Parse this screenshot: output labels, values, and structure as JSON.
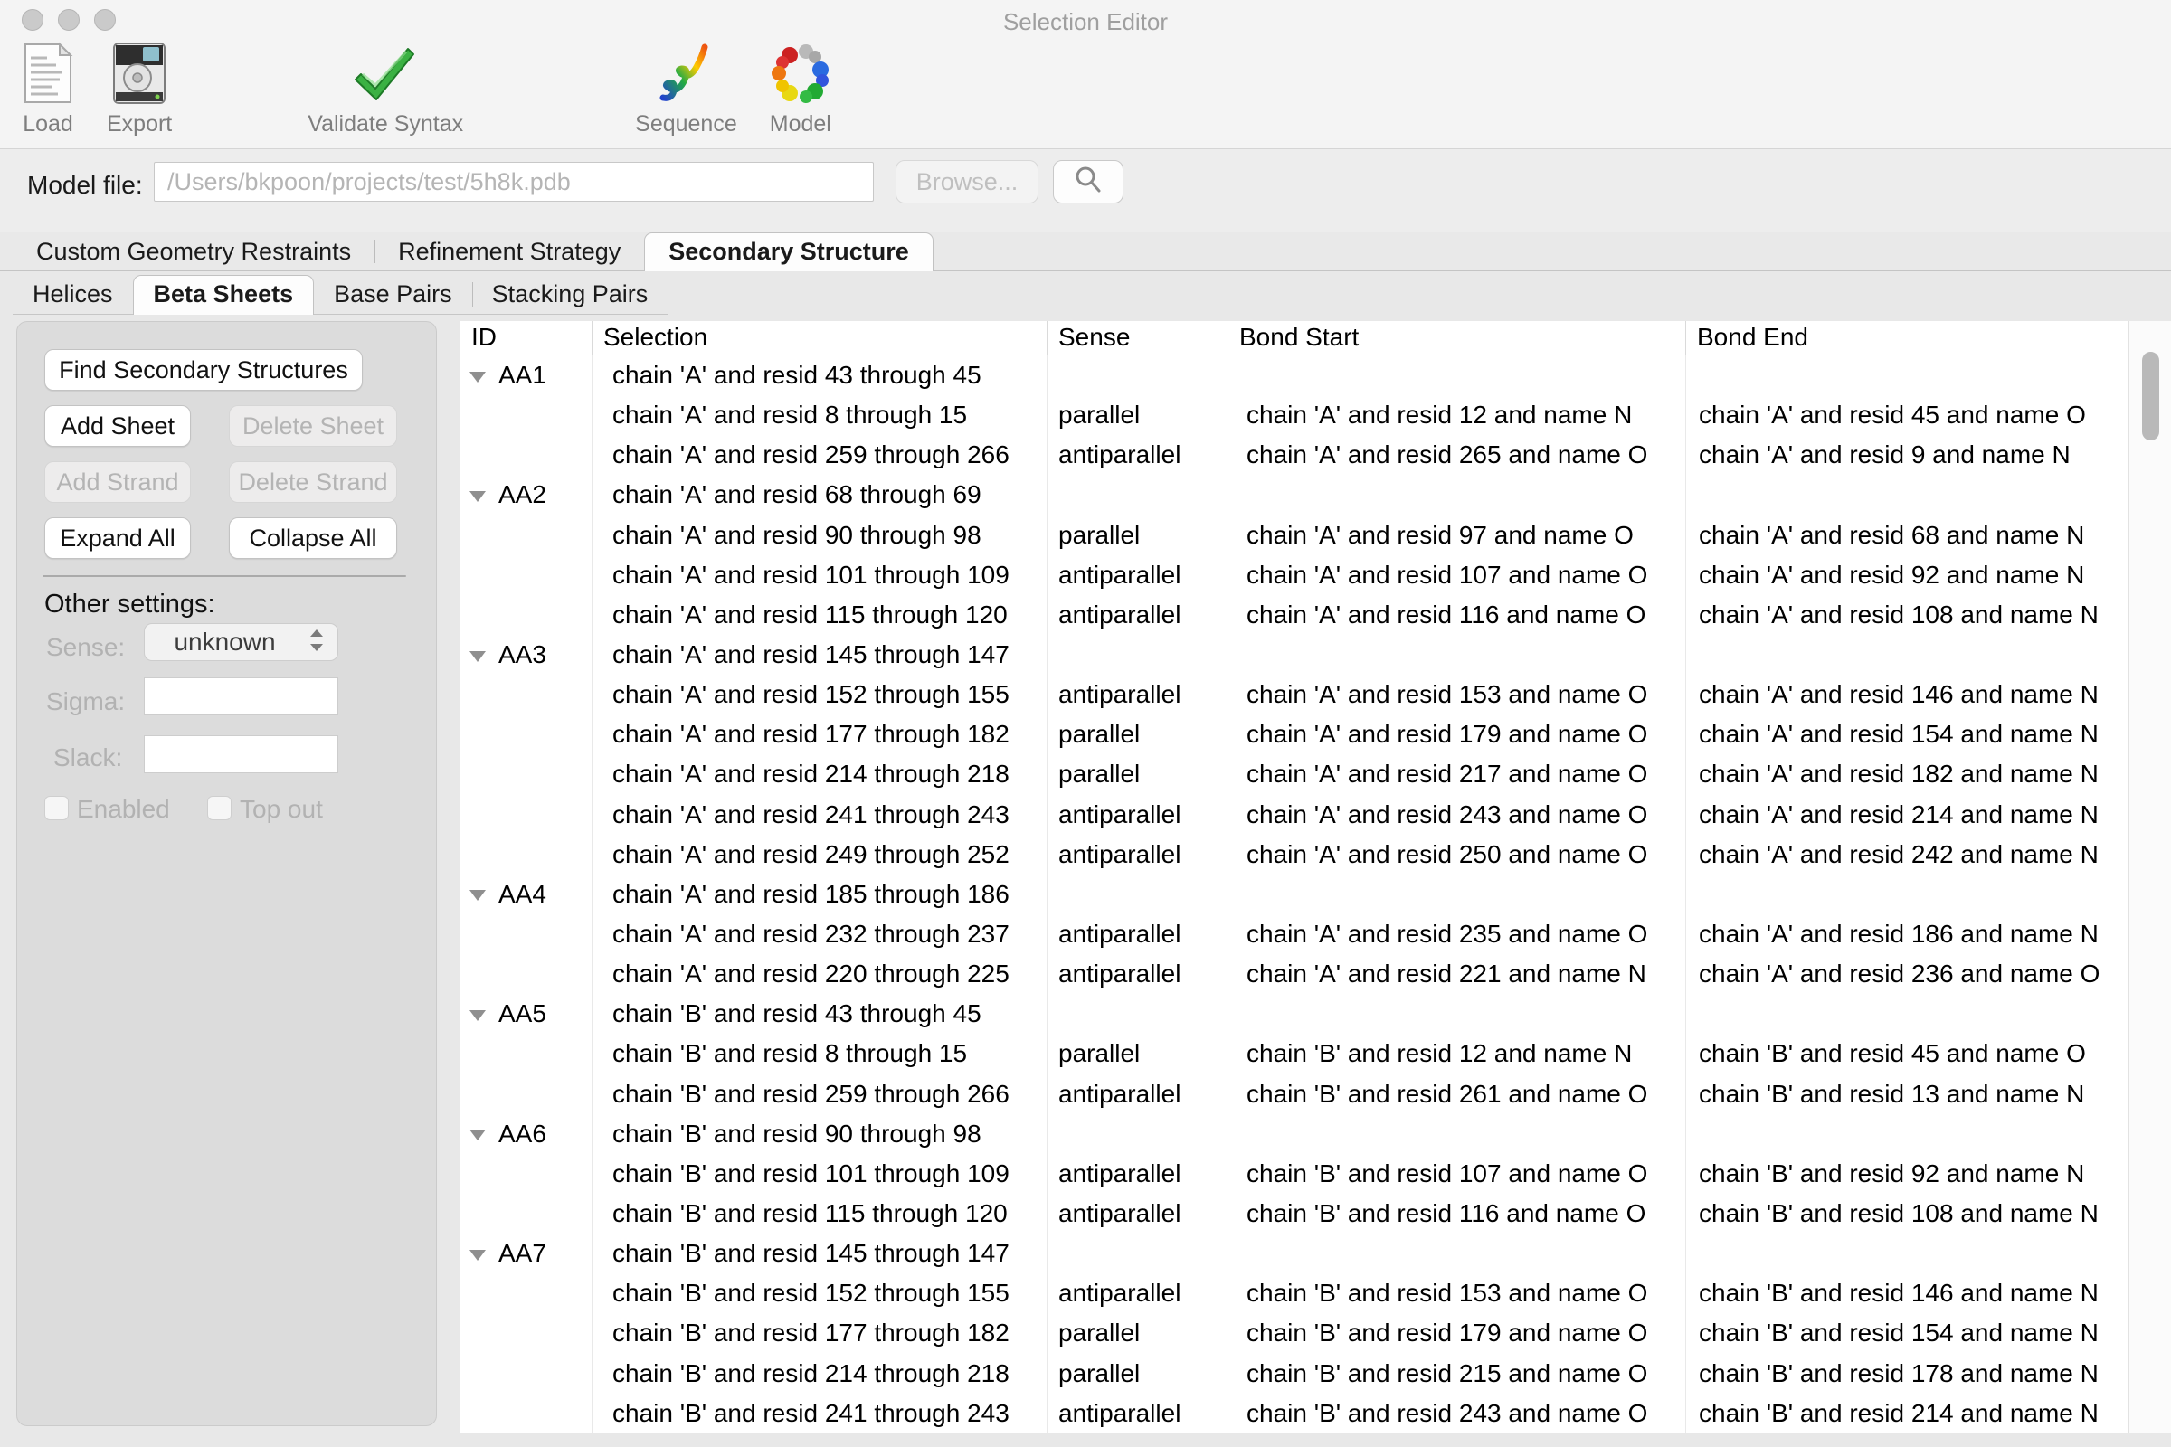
{
  "window": {
    "title": "Selection Editor"
  },
  "colors": {
    "validate_check_green": "#3bb143",
    "window_background": "#e8e8e8",
    "panel_background": "#dcdcdc",
    "table_background": "#ffffff"
  },
  "toolbar": {
    "items": [
      {
        "label": "Load",
        "icon": "load-document-icon"
      },
      {
        "label": "Export",
        "icon": "export-disk-icon"
      },
      {
        "label": "Validate Syntax",
        "icon": "validate-checkmark-icon"
      },
      {
        "label": "Sequence",
        "icon": "sequence-ribbon-icon"
      },
      {
        "label": "Model",
        "icon": "model-molecule-icon"
      }
    ]
  },
  "model_file": {
    "label": "Model file:",
    "value": "/Users/bkpoon/projects/test/5h8k.pdb",
    "browse_label": "Browse...",
    "search_icon": "magnifier-icon"
  },
  "main_tabs": [
    {
      "label": "Custom Geometry Restraints",
      "selected": false
    },
    {
      "label": "Refinement Strategy",
      "selected": false
    },
    {
      "label": "Secondary Structure",
      "selected": true
    }
  ],
  "sub_tabs": [
    {
      "label": "Helices",
      "selected": false
    },
    {
      "label": "Beta Sheets",
      "selected": true
    },
    {
      "label": "Base Pairs",
      "selected": false
    },
    {
      "label": "Stacking Pairs",
      "selected": false
    }
  ],
  "sidebar": {
    "buttons": {
      "find": {
        "label": "Find Secondary Structures",
        "enabled": true
      },
      "add_sheet": {
        "label": "Add Sheet",
        "enabled": true
      },
      "delete_sheet": {
        "label": "Delete Sheet",
        "enabled": false
      },
      "add_strand": {
        "label": "Add Strand",
        "enabled": false
      },
      "delete_strand": {
        "label": "Delete Strand",
        "enabled": false
      },
      "expand_all": {
        "label": "Expand All",
        "enabled": true
      },
      "collapse_all": {
        "label": "Collapse All",
        "enabled": true
      }
    },
    "other_settings": {
      "heading": "Other settings:",
      "sense_label": "Sense:",
      "sense_value": "unknown",
      "sigma_label": "Sigma:",
      "sigma_value": "",
      "slack_label": "Slack:",
      "slack_value": "",
      "enabled_label": "Enabled",
      "enabled_checked": false,
      "top_out_label": "Top out",
      "top_out_checked": false
    }
  },
  "table": {
    "columns": [
      "ID",
      "Selection",
      "Sense",
      "Bond Start",
      "Bond End"
    ],
    "rows": [
      {
        "id": "AA1",
        "selection": "chain 'A' and resid 43 through 45",
        "sense": "",
        "bond_start": "",
        "bond_end": ""
      },
      {
        "id": "",
        "selection": "chain 'A' and resid 8 through 15",
        "sense": "parallel",
        "bond_start": "chain 'A' and resid 12 and name N",
        "bond_end": "chain 'A' and resid 45 and name O"
      },
      {
        "id": "",
        "selection": "chain 'A' and resid 259 through 266",
        "sense": "antiparallel",
        "bond_start": "chain 'A' and resid 265 and name O",
        "bond_end": "chain 'A' and resid 9 and name N"
      },
      {
        "id": "AA2",
        "selection": "chain 'A' and resid 68 through 69",
        "sense": "",
        "bond_start": "",
        "bond_end": ""
      },
      {
        "id": "",
        "selection": "chain 'A' and resid 90 through 98",
        "sense": "parallel",
        "bond_start": "chain 'A' and resid 97 and name O",
        "bond_end": "chain 'A' and resid 68 and name N"
      },
      {
        "id": "",
        "selection": "chain 'A' and resid 101 through 109",
        "sense": "antiparallel",
        "bond_start": "chain 'A' and resid 107 and name O",
        "bond_end": "chain 'A' and resid 92 and name N"
      },
      {
        "id": "",
        "selection": "chain 'A' and resid 115 through 120",
        "sense": "antiparallel",
        "bond_start": "chain 'A' and resid 116 and name O",
        "bond_end": "chain 'A' and resid 108 and name N"
      },
      {
        "id": "AA3",
        "selection": "chain 'A' and resid 145 through 147",
        "sense": "",
        "bond_start": "",
        "bond_end": ""
      },
      {
        "id": "",
        "selection": "chain 'A' and resid 152 through 155",
        "sense": "antiparallel",
        "bond_start": "chain 'A' and resid 153 and name O",
        "bond_end": "chain 'A' and resid 146 and name N"
      },
      {
        "id": "",
        "selection": "chain 'A' and resid 177 through 182",
        "sense": "parallel",
        "bond_start": "chain 'A' and resid 179 and name O",
        "bond_end": "chain 'A' and resid 154 and name N"
      },
      {
        "id": "",
        "selection": "chain 'A' and resid 214 through 218",
        "sense": "parallel",
        "bond_start": "chain 'A' and resid 217 and name O",
        "bond_end": "chain 'A' and resid 182 and name N"
      },
      {
        "id": "",
        "selection": "chain 'A' and resid 241 through 243",
        "sense": "antiparallel",
        "bond_start": "chain 'A' and resid 243 and name O",
        "bond_end": "chain 'A' and resid 214 and name N"
      },
      {
        "id": "",
        "selection": "chain 'A' and resid 249 through 252",
        "sense": "antiparallel",
        "bond_start": "chain 'A' and resid 250 and name O",
        "bond_end": "chain 'A' and resid 242 and name N"
      },
      {
        "id": "AA4",
        "selection": "chain 'A' and resid 185 through 186",
        "sense": "",
        "bond_start": "",
        "bond_end": ""
      },
      {
        "id": "",
        "selection": "chain 'A' and resid 232 through 237",
        "sense": "antiparallel",
        "bond_start": "chain 'A' and resid 235 and name O",
        "bond_end": "chain 'A' and resid 186 and name N"
      },
      {
        "id": "",
        "selection": "chain 'A' and resid 220 through 225",
        "sense": "antiparallel",
        "bond_start": "chain 'A' and resid 221 and name N",
        "bond_end": "chain 'A' and resid 236 and name O"
      },
      {
        "id": "AA5",
        "selection": "chain 'B' and resid 43 through 45",
        "sense": "",
        "bond_start": "",
        "bond_end": ""
      },
      {
        "id": "",
        "selection": "chain 'B' and resid 8 through 15",
        "sense": "parallel",
        "bond_start": "chain 'B' and resid 12 and name N",
        "bond_end": "chain 'B' and resid 45 and name O"
      },
      {
        "id": "",
        "selection": "chain 'B' and resid 259 through 266",
        "sense": "antiparallel",
        "bond_start": "chain 'B' and resid 261 and name O",
        "bond_end": "chain 'B' and resid 13 and name N"
      },
      {
        "id": "AA6",
        "selection": "chain 'B' and resid 90 through 98",
        "sense": "",
        "bond_start": "",
        "bond_end": ""
      },
      {
        "id": "",
        "selection": "chain 'B' and resid 101 through 109",
        "sense": "antiparallel",
        "bond_start": "chain 'B' and resid 107 and name O",
        "bond_end": "chain 'B' and resid 92 and name N"
      },
      {
        "id": "",
        "selection": "chain 'B' and resid 115 through 120",
        "sense": "antiparallel",
        "bond_start": "chain 'B' and resid 116 and name O",
        "bond_end": "chain 'B' and resid 108 and name N"
      },
      {
        "id": "AA7",
        "selection": "chain 'B' and resid 145 through 147",
        "sense": "",
        "bond_start": "",
        "bond_end": ""
      },
      {
        "id": "",
        "selection": "chain 'B' and resid 152 through 155",
        "sense": "antiparallel",
        "bond_start": "chain 'B' and resid 153 and name O",
        "bond_end": "chain 'B' and resid 146 and name N"
      },
      {
        "id": "",
        "selection": "chain 'B' and resid 177 through 182",
        "sense": "parallel",
        "bond_start": "chain 'B' and resid 179 and name O",
        "bond_end": "chain 'B' and resid 154 and name N"
      },
      {
        "id": "",
        "selection": "chain 'B' and resid 214 through 218",
        "sense": "parallel",
        "bond_start": "chain 'B' and resid 215 and name O",
        "bond_end": "chain 'B' and resid 178 and name N"
      },
      {
        "id": "",
        "selection": "chain 'B' and resid 241 through 243",
        "sense": "antiparallel",
        "bond_start": "chain 'B' and resid 243 and name O",
        "bond_end": "chain 'B' and resid 214 and name N"
      }
    ]
  }
}
